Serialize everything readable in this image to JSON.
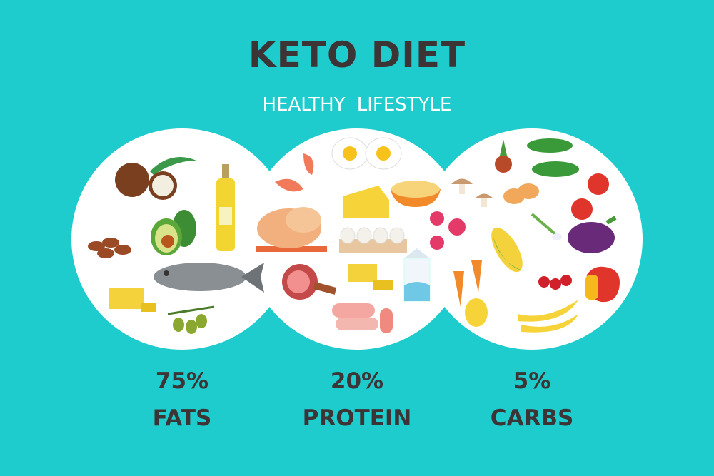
{
  "header": {
    "title": "KETO DIET",
    "subtitle": "HEALTHY  LIFESTYLE"
  },
  "colors": {
    "background": "#1ecbcd",
    "circle": "#ffffff",
    "text": "#3d3535"
  },
  "groups": [
    {
      "percent": "75%",
      "label": "FATS",
      "value": 75,
      "icons": [
        "coconut-icon",
        "palm-leaf-icon",
        "olive-oil-icon",
        "avocado-icon",
        "almonds-icon",
        "fish-icon",
        "butter-icon",
        "olive-branch-icon"
      ]
    },
    {
      "percent": "20%",
      "label": "PROTEIN",
      "value": 20,
      "icons": [
        "shrimp-icon",
        "fried-eggs-icon",
        "cheese-icon",
        "cottage-cheese-icon",
        "roast-chicken-icon",
        "eggs-tray-icon",
        "ham-icon",
        "butter-icon",
        "milk-icon",
        "sausages-icon"
      ]
    },
    {
      "percent": "5%",
      "label": "CARBS",
      "value": 5,
      "icons": [
        "onion-icon",
        "cucumber-icon",
        "mushrooms-icon",
        "potato-icon",
        "tomato-icon",
        "radish-icon",
        "spring-onion-icon",
        "eggplant-icon",
        "corn-icon",
        "carrot-icon",
        "cherries-icon",
        "pepper-icon",
        "pear-icon",
        "banana-icon"
      ]
    }
  ]
}
